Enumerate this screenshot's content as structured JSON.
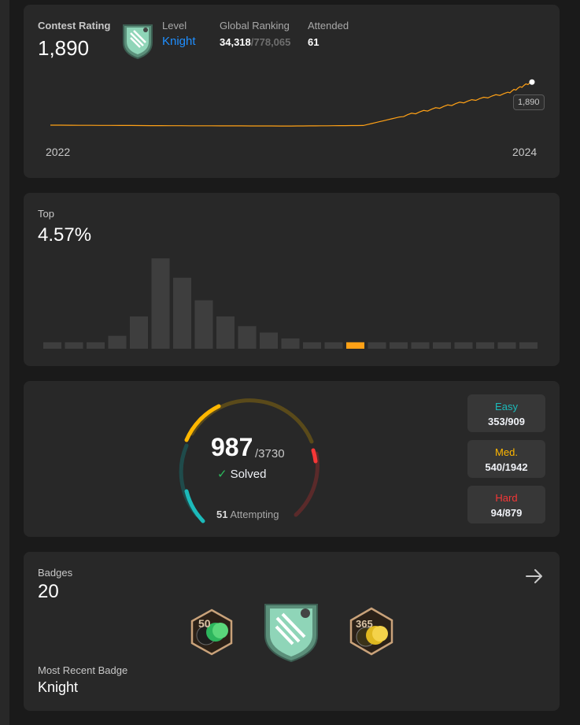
{
  "contest": {
    "rating_label": "Contest Rating",
    "rating": "1,890",
    "level_label": "Level",
    "level": "Knight",
    "ranking_label": "Global Ranking",
    "ranking": "34,318",
    "ranking_total": "/778,065",
    "attended_label": "Attended",
    "attended": "61",
    "year_start": "2022",
    "year_end": "2024",
    "tooltip": "1,890",
    "line_color": "#ffa116"
  },
  "top": {
    "label": "Top",
    "value": "4.57%",
    "highlight_color": "#ffa116",
    "bar_color": "#3e3e3e"
  },
  "solved": {
    "count": "987",
    "total": "/3730",
    "solved_label": "Solved",
    "attempting_count": "51",
    "attempting_label": "Attempting",
    "difficulties": [
      {
        "label": "Easy",
        "value": "353/909",
        "color": "#1cbaba"
      },
      {
        "label": "Med.",
        "value": "540/1942",
        "color": "#ffb700"
      },
      {
        "label": "Hard",
        "value": "94/879",
        "color": "#f63737"
      }
    ]
  },
  "badges": {
    "label": "Badges",
    "count": "20",
    "recent_label": "Most Recent Badge",
    "recent": "Knight"
  },
  "chart_data": [
    {
      "type": "line",
      "title": "Contest Rating",
      "x": [
        2022.0,
        2022.5,
        2023.0,
        2023.3,
        2023.5,
        2023.7,
        2023.9,
        2024.0
      ],
      "values": [
        1500,
        1495,
        1492,
        1497,
        1600,
        1700,
        1790,
        1890
      ],
      "xlabel": "",
      "ylabel": "",
      "x_ticks": [
        "2022",
        "2024"
      ],
      "ylim": [
        1450,
        1920
      ]
    },
    {
      "type": "bar",
      "title": "Top",
      "values": [
        1,
        1,
        1,
        2,
        5,
        14,
        11,
        7.5,
        5,
        3.5,
        2.5,
        1.6,
        1,
        1,
        1,
        1,
        1,
        1,
        1,
        1,
        1,
        1,
        1
      ],
      "highlight_index": 14,
      "xlabel": "",
      "ylabel": ""
    }
  ]
}
